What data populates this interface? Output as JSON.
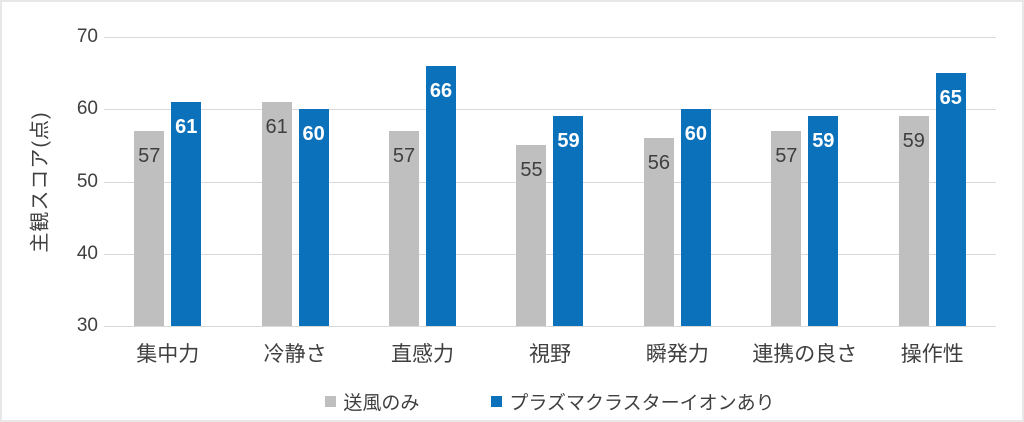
{
  "chart_data": {
    "type": "bar",
    "title": "",
    "categories": [
      "集中力",
      "冷静さ",
      "直感力",
      "視野",
      "瞬発力",
      "連携の良さ",
      "操作性"
    ],
    "series": [
      {
        "name": "送風のみ",
        "values": [
          57,
          61,
          57,
          55,
          56,
          57,
          59
        ],
        "color": "#bfbfbf",
        "label_color": "#3f3f3f",
        "label_bold": false
      },
      {
        "name": "プラズマクラスターイオンあり",
        "values": [
          61,
          60,
          66,
          59,
          60,
          59,
          65
        ],
        "color": "#0a71ba",
        "label_color": "#ffffff",
        "label_bold": true
      }
    ],
    "xlabel": "",
    "ylabel": "主観スコア(点)",
    "ylim": [
      30,
      70
    ],
    "yticks": [
      70,
      60,
      50,
      40,
      30
    ],
    "grid": true,
    "gridline_color": "#d9d9d9",
    "text_color": "#3f3f3f",
    "frame_border_color": "#e7e7e7",
    "data_labels": "inside-end",
    "legend_position": "bottom"
  }
}
